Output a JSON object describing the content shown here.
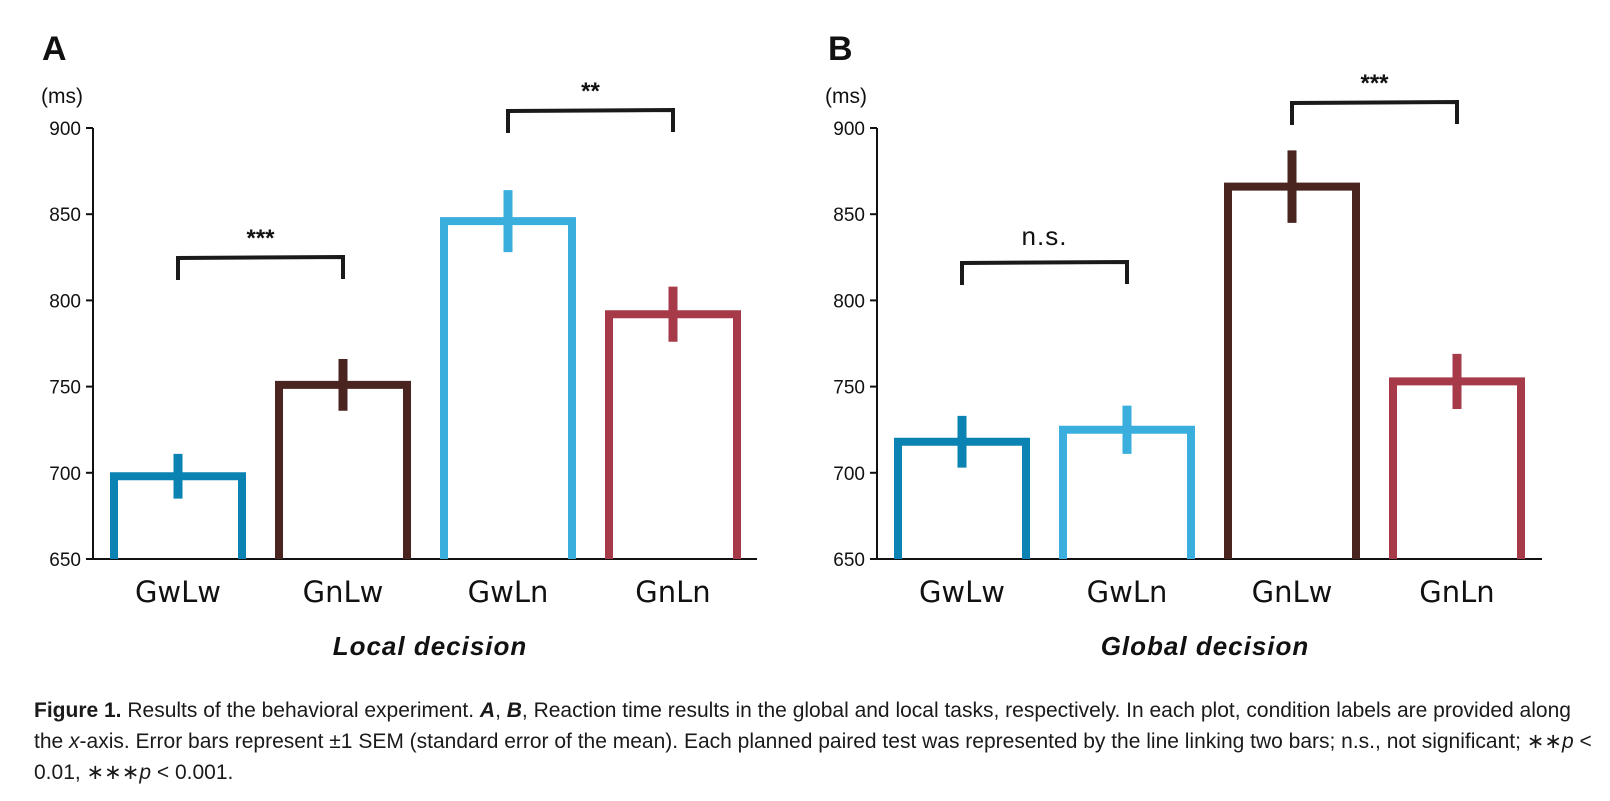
{
  "colors": {
    "GwLw": "#0a82b2",
    "GnLw": "#4a2520",
    "GwLn": "#3aaedd",
    "GnLn": "#a63a48",
    "axis": "#111111",
    "bracket": "#1a1a1a"
  },
  "chart_data": [
    {
      "type": "bar",
      "panel": "A",
      "unit": "(ms)",
      "categories": [
        "GwLw",
        "GnLw",
        "GwLn",
        "GnLn"
      ],
      "values": [
        698,
        751,
        846,
        792
      ],
      "error": [
        13,
        15,
        18,
        16
      ],
      "ylim": [
        650,
        900
      ],
      "yticks": [
        "900",
        "850",
        "800",
        "750",
        "700",
        "650"
      ],
      "xlabel": "Local decision",
      "comparisons": [
        {
          "from": 0,
          "to": 1,
          "label": "***"
        },
        {
          "from": 2,
          "to": 3,
          "label": "**"
        }
      ]
    },
    {
      "type": "bar",
      "panel": "B",
      "unit": "(ms)",
      "categories": [
        "GwLw",
        "GwLn",
        "GnLw",
        "GnLn"
      ],
      "values": [
        718,
        725,
        866,
        753
      ],
      "error": [
        15,
        14,
        21,
        16
      ],
      "ylim": [
        650,
        900
      ],
      "yticks": [
        "900",
        "850",
        "800",
        "750",
        "700",
        "650"
      ],
      "xlabel": "Global decision",
      "comparisons": [
        {
          "from": 0,
          "to": 1,
          "label": "n.s."
        },
        {
          "from": 2,
          "to": 3,
          "label": "***"
        }
      ]
    }
  ],
  "caption": {
    "figure_number": "Figure 1.",
    "text_1": " Results of the behavioral experiment. ",
    "panel_a": "A",
    "comma": ", ",
    "panel_b": "B",
    "text_2": ", Reaction time results in the global and local tasks, respectively. In each plot, condition labels are provided along the ",
    "x_italic": "x",
    "text_3": "-axis. Error bars represent ±1 SEM (standard error of the mean). Each planned paired test was represented by the line linking two bars; n.s., not significant; ",
    "stars_2": "∗∗",
    "p_1": "p",
    "thr_1": " < 0.01, ",
    "stars_3": "∗∗∗",
    "p_2": "p",
    "thr_2": " < 0.001."
  }
}
